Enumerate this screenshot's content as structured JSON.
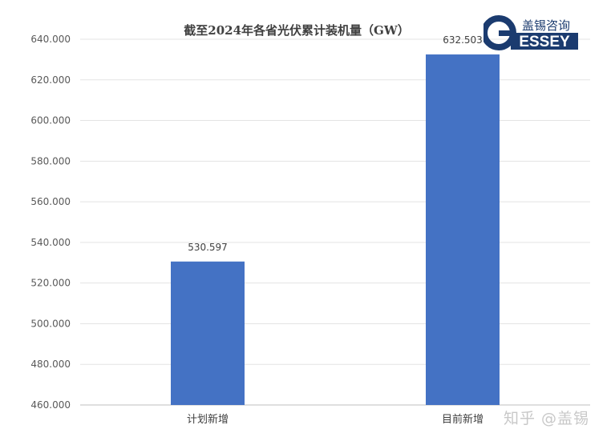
{
  "chart_data": {
    "type": "bar",
    "title": "截至2024年各省光伏累计装机量（GW）",
    "categories": [
      "计划新增",
      "目前新增"
    ],
    "values": [
      530.597,
      632.503
    ],
    "data_labels": [
      "530.597",
      "632.503"
    ],
    "ylim": [
      460,
      640
    ],
    "yticks": [
      "460.000",
      "480.000",
      "500.000",
      "520.000",
      "540.000",
      "560.000",
      "580.000",
      "600.000",
      "620.000",
      "640.000"
    ],
    "ytick_values": [
      460,
      480,
      500,
      520,
      540,
      560,
      580,
      600,
      620,
      640
    ],
    "grid": true,
    "bar_color": "#4472C4",
    "xlabel": "",
    "ylabel": ""
  },
  "logo": {
    "cn": "盖锡咨询",
    "en": "ESSEY",
    "letter": "G",
    "color": "#1b3b6f"
  },
  "watermark": "知乎 @盖锡"
}
